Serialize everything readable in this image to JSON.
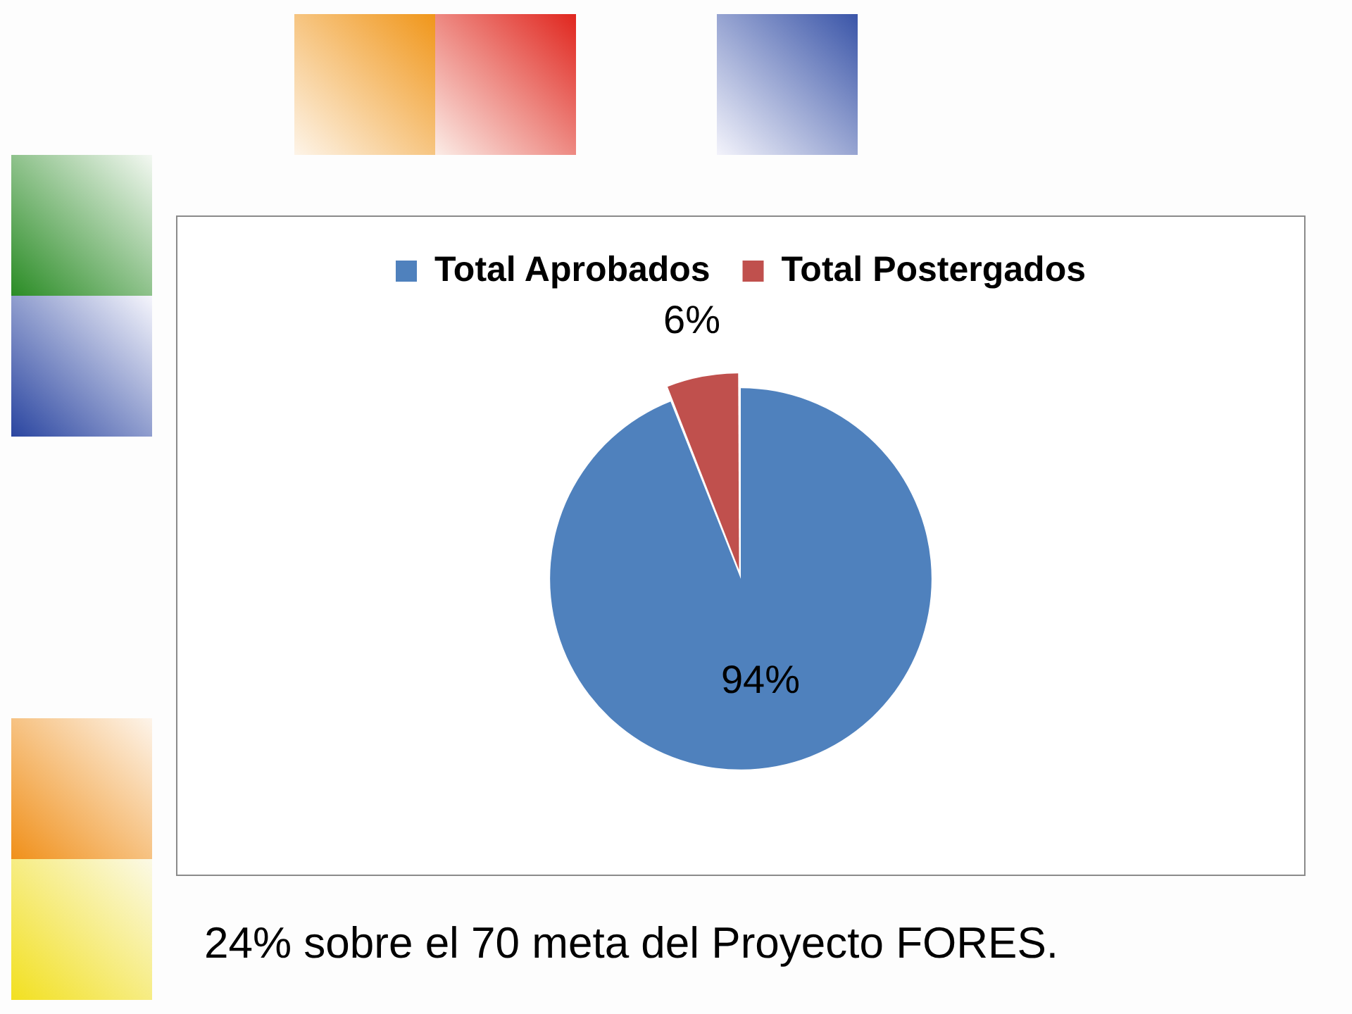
{
  "chart_data": {
    "type": "pie",
    "categories": [
      "Total Aprobados",
      "Total Postergados"
    ],
    "values": [
      94,
      6
    ],
    "colors": [
      "#4f81bd",
      "#c0504d"
    ],
    "value_labels": [
      "94%",
      "6%"
    ],
    "legend": "top",
    "annotations": [
      "24% sobre el 70 meta del Proyecto FORES."
    ]
  }
}
